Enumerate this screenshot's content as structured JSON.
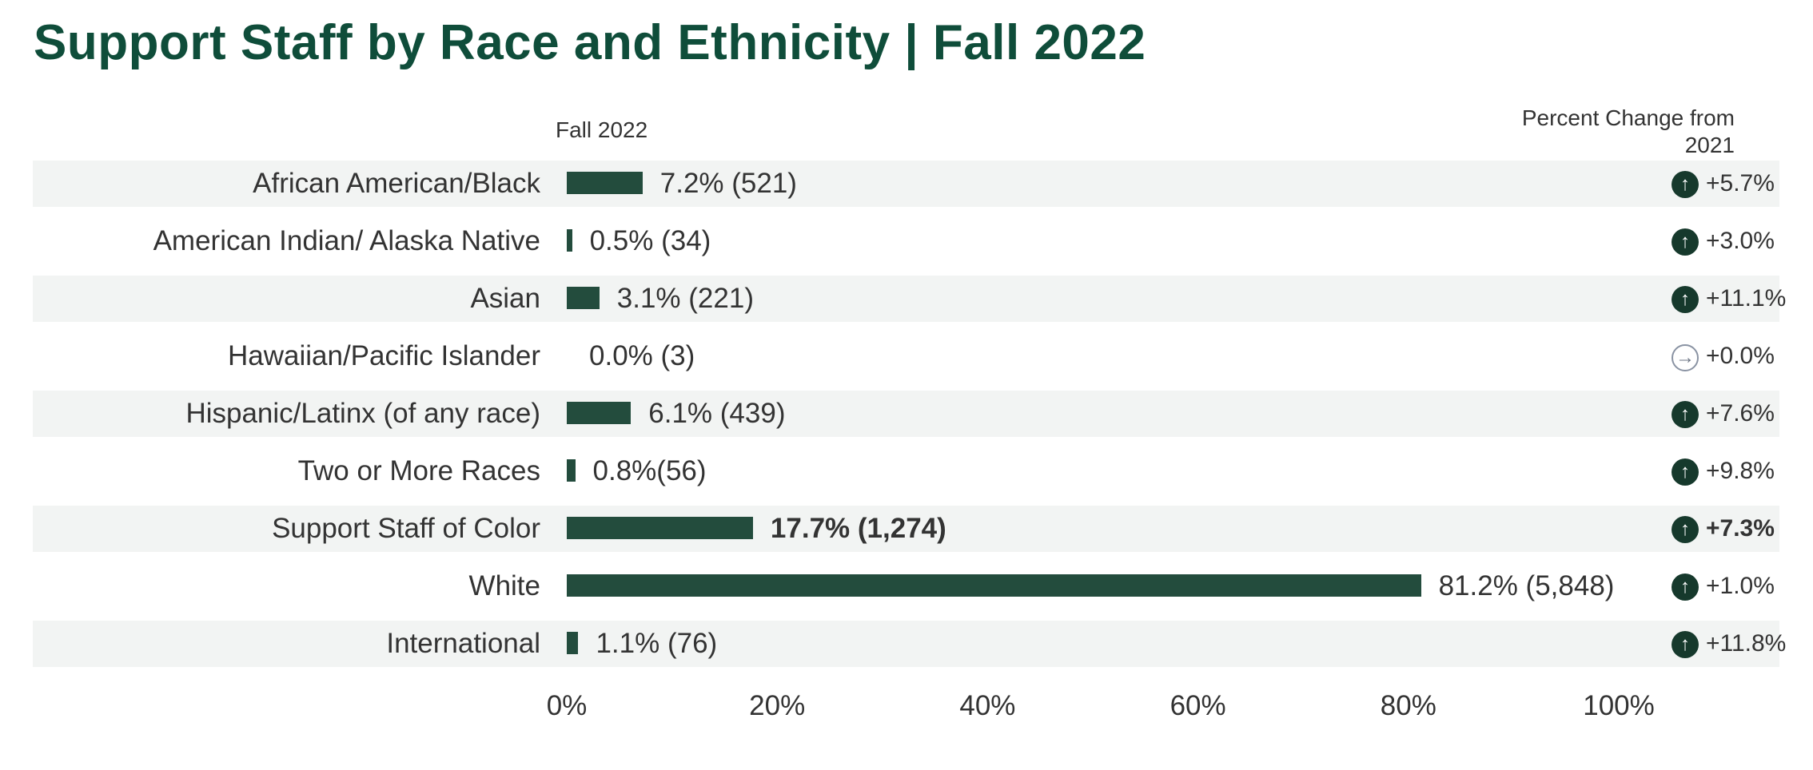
{
  "title": "Support Staff by Race and Ethnicity | Fall 2022",
  "columns": {
    "fall_label": "Fall 2022",
    "change_label_line1": "Percent Change from",
    "change_label_line2": "2021"
  },
  "colors": {
    "title": "#0f4d3a",
    "bar": "#234c3d",
    "up_icon": "#16392c",
    "neutral_icon": "#8a93a3",
    "stripe": "#f2f4f3"
  },
  "chart_data": {
    "type": "bar",
    "orientation": "horizontal",
    "categories": [
      "African American/Black",
      "American Indian/ Alaska Native",
      "Asian",
      "Hawaiian/Pacific Islander",
      "Hispanic/Latinx (of any race)",
      "Two or More Races",
      "Support Staff of Color",
      "White",
      "International"
    ],
    "values": [
      7.2,
      0.5,
      3.1,
      0.0,
      6.1,
      0.8,
      17.7,
      81.2,
      1.1
    ],
    "value_labels": [
      "7.2% (521)",
      "0.5% (34)",
      "3.1% (221)",
      "0.0% (3)",
      "6.1% (439)",
      "0.8%(56)",
      "17.7% (1,274)",
      "81.2% (5,848)",
      "1.1% (76)"
    ],
    "change_labels": [
      "+5.7%",
      "+3.0%",
      "+11.1%",
      "+0.0%",
      "+7.6%",
      "+9.8%",
      "+7.3%",
      "+1.0%",
      "+11.8%"
    ],
    "change_direction": [
      "up",
      "up",
      "up",
      "neutral",
      "up",
      "up",
      "up",
      "up",
      "up"
    ],
    "bold_rows": [
      6
    ],
    "xlim": [
      0,
      100
    ],
    "xticks": [
      "0%",
      "20%",
      "40%",
      "60%",
      "80%",
      "100%"
    ],
    "tick_values": [
      0,
      20,
      40,
      60,
      80,
      100
    ],
    "grid": false
  }
}
